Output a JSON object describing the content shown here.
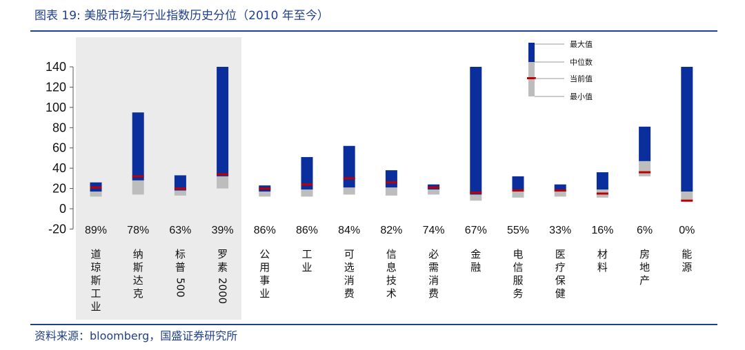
{
  "header": {
    "title": "图表 19:  美股市场与行业指数历史分位（2010 年至今）"
  },
  "footer": {
    "source": "资料来源：bloomberg，国盛证券研究所"
  },
  "colors": {
    "max": "#0a2e9c",
    "min": "#bdbdbd",
    "current": "#c00000",
    "highlight": "#ebebeb",
    "accent": "#1f3f8f"
  },
  "chart_data": {
    "type": "bar",
    "title": "美股市场与行业指数历史分位（2010 年至今）",
    "ylim": [
      -20,
      140
    ],
    "yticks": [
      -20,
      0,
      20,
      40,
      60,
      80,
      100,
      120,
      140
    ],
    "legend": {
      "max": "最大值",
      "median": "中位数",
      "current": "当前值",
      "min": "最小值",
      "position": "top-right"
    },
    "highlighted_group": [
      "道琼斯工业",
      "纳斯达克",
      "标普500",
      "罗素2000"
    ],
    "categories": [
      {
        "name": "道琼斯工业",
        "lines": [
          "道",
          "琼",
          "斯",
          "工",
          "业"
        ],
        "percentile": "89%",
        "min": 12,
        "median": 17,
        "max": 26,
        "current": 21
      },
      {
        "name": "纳斯达克",
        "lines": [
          "纳",
          "斯",
          "达",
          "克"
        ],
        "percentile": "78%",
        "min": 14,
        "median": 28,
        "max": 95,
        "current": 32
      },
      {
        "name": "标普500",
        "lines": [
          "标",
          "普",
          "500"
        ],
        "percentile": "63%",
        "min": 13,
        "median": 18,
        "max": 33,
        "current": 20
      },
      {
        "name": "罗素2000",
        "lines": [
          "罗",
          "素",
          "2000"
        ],
        "percentile": "39%",
        "min": 20,
        "median": 32,
        "max": 140,
        "current": 34
      },
      {
        "name": "公用事业",
        "lines": [
          "公",
          "用",
          "事",
          "业"
        ],
        "percentile": "86%",
        "min": 12,
        "median": 17,
        "max": 23,
        "current": 20
      },
      {
        "name": "工业",
        "lines": [
          "工",
          "业"
        ],
        "percentile": "86%",
        "min": 12,
        "median": 19,
        "max": 51,
        "current": 24
      },
      {
        "name": "可选消费",
        "lines": [
          "可",
          "选",
          "消",
          "费"
        ],
        "percentile": "84%",
        "min": 14,
        "median": 21,
        "max": 62,
        "current": 30
      },
      {
        "name": "信息技术",
        "lines": [
          "信",
          "息",
          "技",
          "术"
        ],
        "percentile": "82%",
        "min": 13,
        "median": 21,
        "max": 38,
        "current": 26
      },
      {
        "name": "必需消费",
        "lines": [
          "必",
          "需",
          "消",
          "费"
        ],
        "percentile": "74%",
        "min": 14,
        "median": 19,
        "max": 24,
        "current": 21
      },
      {
        "name": "金融",
        "lines": [
          "金",
          "融"
        ],
        "percentile": "67%",
        "min": 8,
        "median": 14,
        "max": 140,
        "current": 16
      },
      {
        "name": "电信服务",
        "lines": [
          "电",
          "信",
          "服",
          "务"
        ],
        "percentile": "55%",
        "min": 11,
        "median": 17,
        "max": 32,
        "current": 18
      },
      {
        "name": "医疗保健",
        "lines": [
          "医",
          "疗",
          "保",
          "健"
        ],
        "percentile": "33%",
        "min": 12,
        "median": 18,
        "max": 24,
        "current": 18
      },
      {
        "name": "材料",
        "lines": [
          "材",
          "料"
        ],
        "percentile": "16%",
        "min": 11,
        "median": 19,
        "max": 36,
        "current": 15
      },
      {
        "name": "房地产",
        "lines": [
          "房",
          "地",
          "产"
        ],
        "percentile": "6%",
        "min": 32,
        "median": 47,
        "max": 81,
        "current": 36
      },
      {
        "name": "能源",
        "lines": [
          "能",
          "源"
        ],
        "percentile": "0%",
        "min": 8,
        "median": 17,
        "max": 140,
        "current": 8
      }
    ]
  }
}
